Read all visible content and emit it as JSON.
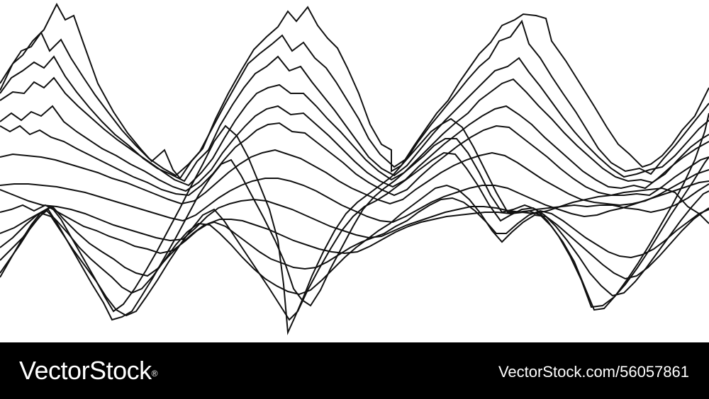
{
  "artwork": {
    "description_icon": "stacked-wave-lines-icon",
    "stroke_color": "#111111",
    "background_color": "#ffffff"
  },
  "footer": {
    "background_color": "#000000",
    "text_color": "#ffffff",
    "logo_text": "VectorStock",
    "logo_mark": "®",
    "image_id": "VectorStock.com/56057861"
  }
}
